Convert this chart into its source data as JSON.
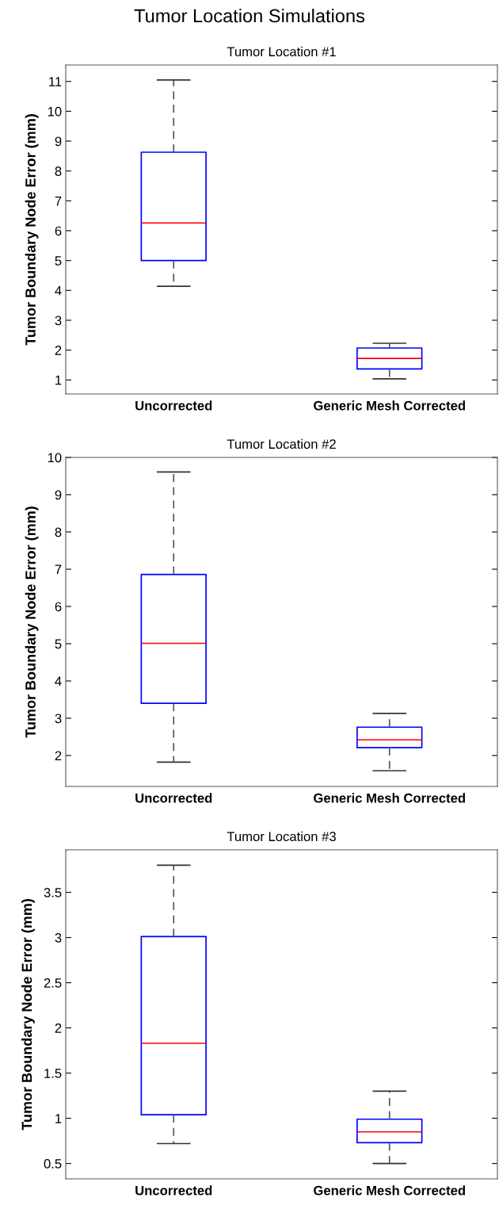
{
  "chart_data": [
    {
      "type": "box",
      "title": "Tumor Location #1",
      "ylabel": "Tumor Boundary Node Error (mm)",
      "categories": [
        "Uncorrected",
        "Generic Mesh Corrected"
      ],
      "ylim": [
        0.53,
        11.55
      ],
      "yticks": [
        1,
        2,
        3,
        4,
        5,
        6,
        7,
        8,
        9,
        10,
        11
      ],
      "grid": false,
      "boxes": [
        {
          "low": 4.14,
          "q1": 5.0,
          "median": 6.26,
          "q3": 8.63,
          "high": 11.05
        },
        {
          "low": 1.04,
          "q1": 1.37,
          "median": 1.72,
          "q3": 2.07,
          "high": 2.23
        }
      ],
      "color": "#0000ff"
    },
    {
      "type": "box",
      "title": "Tumor Location #2",
      "ylabel": "Tumor Boundary Node Error (mm)",
      "categories": [
        "Uncorrected",
        "Generic Mesh Corrected"
      ],
      "ylim": [
        1.17,
        10
      ],
      "yticks": [
        2,
        3,
        4,
        5,
        6,
        7,
        8,
        9,
        10
      ],
      "grid": false,
      "boxes": [
        {
          "low": 1.82,
          "q1": 3.4,
          "median": 5.01,
          "q3": 6.86,
          "high": 9.61
        },
        {
          "low": 1.59,
          "q1": 2.21,
          "median": 2.42,
          "q3": 2.76,
          "high": 3.13
        }
      ],
      "color": "#0000ff"
    },
    {
      "type": "box",
      "title": "Tumor Location #3",
      "ylabel": "Tumor Boundary Node Error (mm)",
      "categories": [
        "Uncorrected",
        "Generic Mesh Corrected"
      ],
      "ylim": [
        0.33,
        3.97
      ],
      "yticks": [
        0.5,
        1,
        1.5,
        2,
        2.5,
        3,
        3.5
      ],
      "grid": false,
      "boxes": [
        {
          "low": 0.72,
          "q1": 1.04,
          "median": 1.83,
          "q3": 3.01,
          "high": 3.8
        },
        {
          "low": 0.5,
          "q1": 0.73,
          "median": 0.85,
          "q3": 0.99,
          "high": 1.3
        }
      ],
      "color": "#0000ff"
    },
    {
      "type": "other",
      "title": "Tumor Location Simulations"
    }
  ]
}
